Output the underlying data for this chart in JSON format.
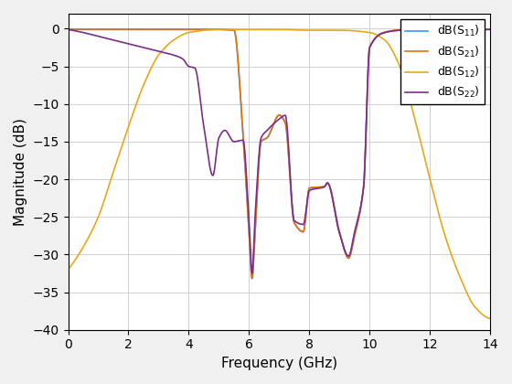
{
  "title": "",
  "xlabel": "Frequency (GHz)",
  "ylabel": "Magnitude (dB)",
  "xlim": [
    0,
    14
  ],
  "ylim": [
    -40,
    2
  ],
  "yticks": [
    0,
    -5,
    -10,
    -15,
    -20,
    -25,
    -30,
    -35,
    -40
  ],
  "xticks": [
    0,
    2,
    4,
    6,
    8,
    10,
    12,
    14
  ],
  "line_colors": [
    "#3399ff",
    "#e8720c",
    "#e6a817",
    "#7b2d8b"
  ],
  "linewidth": 1.2,
  "grid": true,
  "background_color": "#ffffff",
  "figure_bgcolor": "#f0f0f0",
  "s11_points_x": [
    0,
    1.0,
    2.0,
    3.0,
    4.0,
    4.5,
    4.8,
    5.0,
    5.2,
    5.5,
    5.8,
    6.0,
    6.1,
    6.2,
    6.4,
    6.6,
    7.0,
    7.2,
    7.5,
    7.8,
    8.0,
    8.5,
    8.6,
    9.0,
    9.3,
    9.5,
    9.8,
    10.0,
    10.5,
    11.0,
    12.0,
    14.0
  ],
  "s11_points_y": [
    -0.1,
    -0.1,
    -0.1,
    -0.1,
    -0.1,
    -0.1,
    -0.1,
    -0.1,
    -0.15,
    -0.2,
    -14.0,
    -27.0,
    -33.2,
    -27.0,
    -15.0,
    -14.5,
    -11.5,
    -12.5,
    -25.8,
    -27.0,
    -21.2,
    -21.0,
    -20.5,
    -27.0,
    -30.5,
    -27.5,
    -21.0,
    -2.5,
    -0.5,
    -0.2,
    -0.1,
    -0.1
  ],
  "s22_points_x": [
    0,
    0.5,
    1.0,
    1.5,
    2.0,
    2.5,
    3.0,
    3.5,
    3.8,
    4.0,
    4.2,
    4.5,
    4.8,
    5.0,
    5.2,
    5.5,
    5.8,
    6.0,
    6.1,
    6.2,
    6.4,
    6.6,
    7.0,
    7.2,
    7.5,
    7.8,
    8.0,
    8.5,
    8.6,
    9.0,
    9.3,
    9.5,
    9.8,
    10.0,
    10.5,
    11.0,
    12.0,
    14.0
  ],
  "s22_points_y": [
    -0.1,
    -0.5,
    -1.0,
    -1.5,
    -2.0,
    -2.5,
    -3.0,
    -3.5,
    -4.0,
    -5.0,
    -5.2,
    -13.0,
    -19.5,
    -14.5,
    -13.5,
    -15.0,
    -14.8,
    -25.5,
    -32.5,
    -25.0,
    -14.5,
    -13.5,
    -12.0,
    -11.5,
    -25.5,
    -26.0,
    -21.5,
    -21.0,
    -20.5,
    -27.2,
    -30.2,
    -27.0,
    -21.0,
    -2.5,
    -0.5,
    -0.2,
    -0.1,
    -0.1
  ],
  "s12_points_x": [
    0,
    0.5,
    1.0,
    1.5,
    2.0,
    2.5,
    3.0,
    3.5,
    4.0,
    5.0,
    6.0,
    7.0,
    8.0,
    9.0,
    10.0,
    10.5,
    11.0,
    11.5,
    12.0,
    12.5,
    13.0,
    13.5,
    14.0
  ],
  "s12_points_y": [
    -32.0,
    -29.0,
    -25.0,
    -19.0,
    -13.0,
    -7.5,
    -3.5,
    -1.5,
    -0.5,
    -0.1,
    -0.1,
    -0.1,
    -0.2,
    -0.2,
    -0.5,
    -1.5,
    -5.0,
    -12.0,
    -20.0,
    -27.5,
    -33.0,
    -37.0,
    -38.5
  ]
}
